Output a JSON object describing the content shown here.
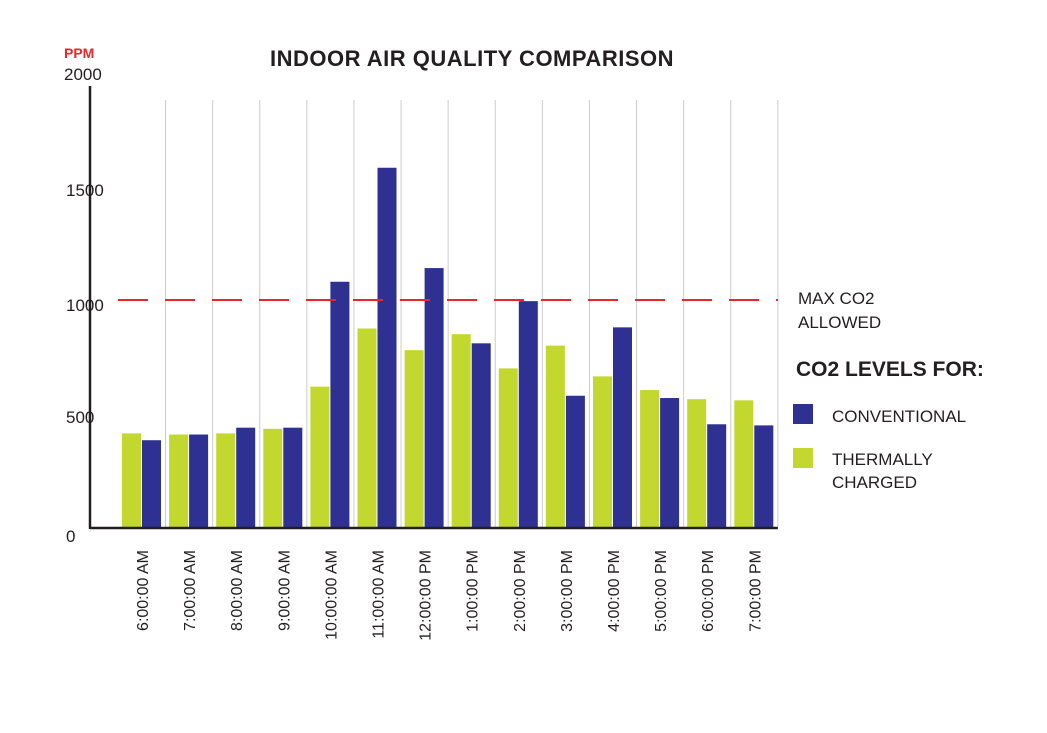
{
  "chart_data": {
    "type": "bar",
    "title": "INDOOR AIR QUALITY COMPARISON",
    "ylabel": "PPM",
    "xlabel": "",
    "ylim": [
      0,
      2000
    ],
    "yticks": [
      "0",
      "500",
      "1000",
      "1500",
      "2000"
    ],
    "ytick_values": [
      0,
      500,
      1000,
      1500,
      2000
    ],
    "categories": [
      "6:00:00 AM",
      "7:00:00 AM",
      "8:00:00 AM",
      "9:00:00 AM",
      "10:00:00 AM",
      "11:00:00 AM",
      "12:00:00 PM",
      "1:00:00 PM",
      "2:00:00 PM",
      "3:00:00 PM",
      "4:00:00 PM",
      "5:00:00 PM",
      "6:00:00 PM",
      "7:00:00 PM"
    ],
    "series": [
      {
        "name": "THERMALLY CHARGED",
        "color": "#c3d82f",
        "values": [
          415,
          410,
          415,
          435,
          620,
          875,
          780,
          850,
          700,
          800,
          665,
          605,
          565,
          560
        ]
      },
      {
        "name": "CONVENTIONAL",
        "color": "#2e3192",
        "values": [
          385,
          410,
          440,
          440,
          1080,
          1580,
          1140,
          810,
          995,
          580,
          880,
          570,
          455,
          450
        ]
      }
    ],
    "legend": {
      "title": "CO2 LEVELS FOR:",
      "position": "right",
      "entries": [
        {
          "label": "CONVENTIONAL",
          "color": "#2e3192"
        },
        {
          "label": "THERMALLY CHARGED",
          "color": "#c3d82f"
        }
      ]
    },
    "reference_line": {
      "value": 1000,
      "label": "MAX CO2 ALLOWED",
      "color": "#e8262c",
      "style": "dashed"
    },
    "grid": "vertical",
    "colors": {
      "ylabel": "#e8262c",
      "axis": "#231f20",
      "text": "#231f20",
      "grid": "#cccccc"
    }
  }
}
